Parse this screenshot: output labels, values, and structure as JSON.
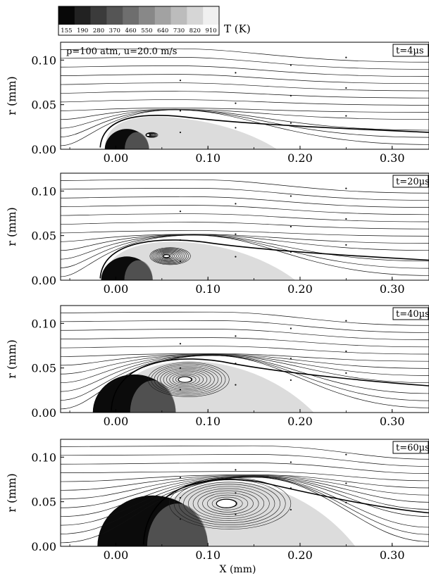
{
  "colorbar": {
    "label": "T (K)",
    "ticks": [
      "155",
      "190",
      "280",
      "370",
      "460",
      "550",
      "640",
      "730",
      "820",
      "910"
    ],
    "colors": [
      "#080808",
      "#222222",
      "#3b3b3b",
      "#555555",
      "#6e6e6e",
      "#888888",
      "#a2a2a2",
      "#bcbcbc",
      "#d6d6d6",
      "#f0f0f0"
    ]
  },
  "chart_data": [
    {
      "type": "contour",
      "annotation": "p=100 atm, u=20.0 m/s",
      "time_label": "t=4µs",
      "ylabel": "r (mm)",
      "xlabel": "",
      "xlim": [
        -0.06,
        0.34
      ],
      "ylim": [
        0.0,
        0.12
      ],
      "x_ticks": [
        "0.00",
        "0.10",
        "0.20",
        "0.30"
      ],
      "y_ticks": [
        "0.00",
        "0.05",
        "0.10"
      ],
      "droplet": {
        "center_x": 0.012,
        "radius": 0.024,
        "front_x": -0.012
      },
      "vortex": {
        "x": 0.035,
        "r": 0.016,
        "size": 0.006
      },
      "wake_x_end": 0.34,
      "wake_height": 0.038,
      "streamline_count": 12
    },
    {
      "type": "contour",
      "annotation": "",
      "time_label": "t=20µs",
      "ylabel": "r (mm)",
      "xlabel": "",
      "xlim": [
        -0.06,
        0.34
      ],
      "ylim": [
        0.0,
        0.12
      ],
      "x_ticks": [
        "0.00",
        "0.10",
        "0.20",
        "0.30"
      ],
      "y_ticks": [
        "0.00",
        "0.05",
        "0.10"
      ],
      "droplet": {
        "center_x": 0.012,
        "radius": 0.028,
        "front_x": -0.012
      },
      "vortex": {
        "x": 0.055,
        "r": 0.027,
        "size": 0.02
      },
      "wake_x_end": 0.34,
      "wake_height": 0.045,
      "streamline_count": 12
    },
    {
      "type": "contour",
      "annotation": "",
      "time_label": "t=40µs",
      "ylabel": "r (mm)",
      "xlabel": "",
      "xlim": [
        -0.06,
        0.34
      ],
      "ylim": [
        0.0,
        0.12
      ],
      "x_ticks": [
        "0.00",
        "0.10",
        "0.20",
        "0.30"
      ],
      "y_ticks": [
        "0.00",
        "0.05",
        "0.10"
      ],
      "droplet": {
        "center_x": 0.02,
        "radius": 0.045,
        "front_x": 0.0
      },
      "vortex": {
        "x": 0.075,
        "r": 0.037,
        "size": 0.04
      },
      "wake_x_end": 0.34,
      "wake_height": 0.06,
      "streamline_count": 12
    },
    {
      "type": "contour",
      "annotation": "",
      "time_label": "t=60µs",
      "ylabel": "r (mm)",
      "xlabel": "X (mm)",
      "xlim": [
        -0.06,
        0.34
      ],
      "ylim": [
        0.0,
        0.12
      ],
      "x_ticks": [
        "0.00",
        "0.10",
        "0.20",
        "0.30"
      ],
      "y_ticks": [
        "0.00",
        "0.05",
        "0.10"
      ],
      "droplet": {
        "center_x": 0.04,
        "radius": 0.06,
        "front_x": 0.035
      },
      "vortex": {
        "x": 0.12,
        "r": 0.048,
        "size": 0.06
      },
      "wake_x_end": 0.34,
      "wake_height": 0.075,
      "streamline_count": 12
    }
  ]
}
